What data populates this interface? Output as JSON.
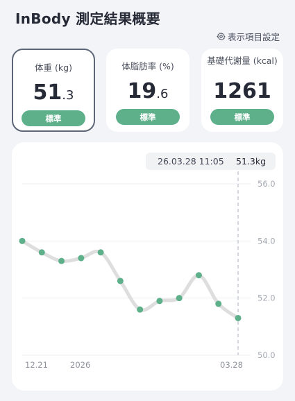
{
  "header": {
    "title": "InBody 測定結果概要",
    "settings_label": "表示項目設定"
  },
  "cards": [
    {
      "label": "体重 (kg)",
      "value_int": "51",
      "value_dec": ".3",
      "status": "標準",
      "selected": true
    },
    {
      "label": "体脂肪率 (%)",
      "value_int": "19",
      "value_dec": ".6",
      "status": "標準",
      "selected": false
    },
    {
      "label": "基礎代謝量 (kcal)",
      "value_int": "1261",
      "value_dec": "",
      "status": "標準",
      "selected": false
    }
  ],
  "tooltip": {
    "date": "26.03.28 11:05",
    "value": "51.3kg"
  },
  "colors": {
    "accent": "#5db08a",
    "line": "#dedede",
    "selected_border": "#5d6677"
  },
  "chart_data": {
    "type": "line",
    "title": "",
    "xlabel": "",
    "ylabel": "",
    "x_tick_labels": [
      "12.21",
      "2026",
      "03.28"
    ],
    "y_ticks": [
      "56.0",
      "54.0",
      "52.0",
      "50.0"
    ],
    "ylim": [
      50.0,
      56.0
    ],
    "grid": true,
    "values": [
      54.0,
      53.6,
      53.3,
      53.4,
      53.6,
      52.6,
      51.6,
      51.9,
      52.0,
      52.8,
      51.8,
      51.3
    ],
    "selected_index": 11
  }
}
